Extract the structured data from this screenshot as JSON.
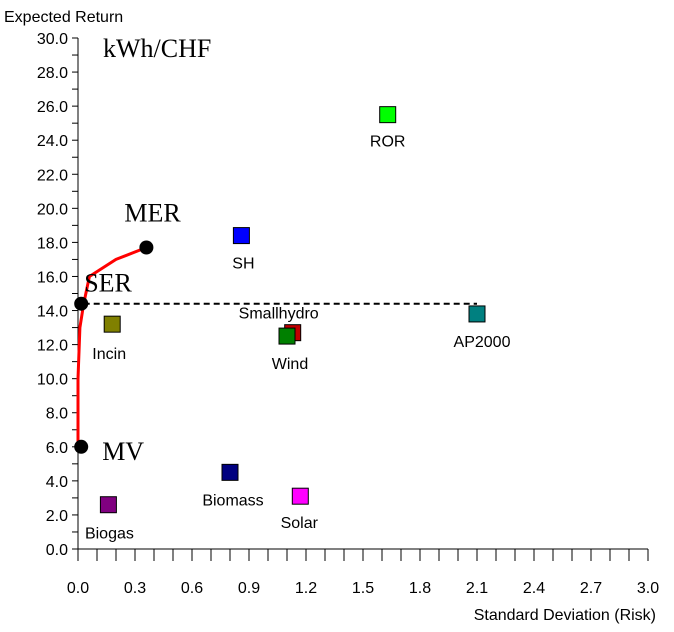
{
  "chart_data": {
    "type": "scatter",
    "title": "",
    "xlabel": "Standard Deviation (Risk)",
    "ylabel": "Expected Return",
    "unit_label": "kWh/CHF",
    "xlim": [
      0.0,
      3.0
    ],
    "ylim": [
      0.0,
      30.0
    ],
    "x_ticks": [
      "0.0",
      "0.3",
      "0.6",
      "0.9",
      "1.2",
      "1.5",
      "1.8",
      "2.1",
      "2.4",
      "2.7",
      "3.0"
    ],
    "y_ticks": [
      "0.0",
      "2.0",
      "4.0",
      "6.0",
      "8.0",
      "10.0",
      "12.0",
      "14.0",
      "16.0",
      "18.0",
      "20.0",
      "22.0",
      "24.0",
      "26.0",
      "28.0",
      "30.0"
    ],
    "grid": false,
    "legend": "none",
    "points": [
      {
        "label": "ROR",
        "x": 1.63,
        "y": 25.5,
        "color": "#00ff00"
      },
      {
        "label": "SH",
        "x": 0.86,
        "y": 18.4,
        "color": "#0000ff"
      },
      {
        "label": "AP2000",
        "x": 2.1,
        "y": 13.8,
        "color": "#008080"
      },
      {
        "label": "Smallhydro",
        "x": 1.13,
        "y": 12.7,
        "color": "#c00000"
      },
      {
        "label": "Wind",
        "x": 1.1,
        "y": 12.5,
        "color": "#008000"
      },
      {
        "label": "Incin",
        "x": 0.18,
        "y": 13.2,
        "color": "#808000"
      },
      {
        "label": "Biomass",
        "x": 0.8,
        "y": 4.5,
        "color": "#000080"
      },
      {
        "label": "Solar",
        "x": 1.17,
        "y": 3.1,
        "color": "#ff00ff"
      },
      {
        "label": "Biogas",
        "x": 0.16,
        "y": 2.6,
        "color": "#800080"
      }
    ],
    "frontier": {
      "color": "#ff0000",
      "points": [
        [
          0.0,
          6.0
        ],
        [
          0.0,
          10.0
        ],
        [
          0.01,
          13.0
        ],
        [
          0.03,
          14.4
        ],
        [
          0.06,
          16.0
        ],
        [
          0.2,
          17.0
        ],
        [
          0.36,
          17.7
        ]
      ]
    },
    "special_points": [
      {
        "label": "MER",
        "x": 0.36,
        "y": 17.7
      },
      {
        "label": "SER",
        "x": 0.03,
        "y": 14.4
      },
      {
        "label": "MV",
        "x": 0.03,
        "y": 6.0
      }
    ],
    "reference_line": {
      "y": 14.4,
      "x_start": 0.03,
      "x_end": 2.1,
      "style": "dashed"
    }
  }
}
